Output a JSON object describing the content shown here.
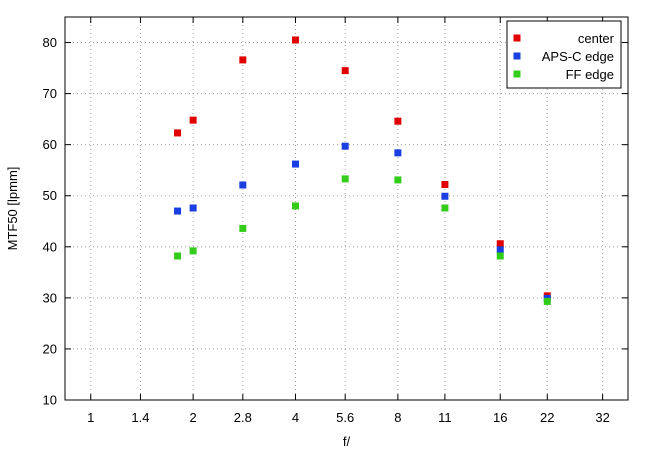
{
  "chart_data": {
    "type": "scatter",
    "xlabel": "f/",
    "ylabel": "MTF50 [lpmm]",
    "x_ticks": [
      "1",
      "1.4",
      "2",
      "2.8",
      "4",
      "5.6",
      "8",
      "11",
      "16",
      "22",
      "32"
    ],
    "x_scale": "log",
    "x_range": [
      0.84,
      38
    ],
    "ylim": [
      10,
      85
    ],
    "y_ticks": [
      10,
      20,
      30,
      40,
      50,
      60,
      70,
      80
    ],
    "grid": true,
    "legend_position": "top-right",
    "series": [
      {
        "name": "center",
        "color": "#e00000",
        "x": [
          1.8,
          2.0,
          2.8,
          4.0,
          5.6,
          8.0,
          11.0,
          16.0,
          22.0
        ],
        "y": [
          62.3,
          64.8,
          76.6,
          80.5,
          74.5,
          64.6,
          52.2,
          40.6,
          30.4
        ]
      },
      {
        "name": "APS-C edge",
        "color": "#1a3fe0",
        "x": [
          1.8,
          2.0,
          2.8,
          4.0,
          5.6,
          8.0,
          11.0,
          16.0,
          22.0
        ],
        "y": [
          47.0,
          47.6,
          52.1,
          56.2,
          59.7,
          58.4,
          49.9,
          39.4,
          29.9
        ]
      },
      {
        "name": "FF edge",
        "color": "#33cc1a",
        "x": [
          1.8,
          2.0,
          2.8,
          4.0,
          5.6,
          8.0,
          11.0,
          16.0,
          22.0
        ],
        "y": [
          38.2,
          39.2,
          43.6,
          48.0,
          53.3,
          53.1,
          47.6,
          38.2,
          29.3
        ]
      }
    ]
  }
}
